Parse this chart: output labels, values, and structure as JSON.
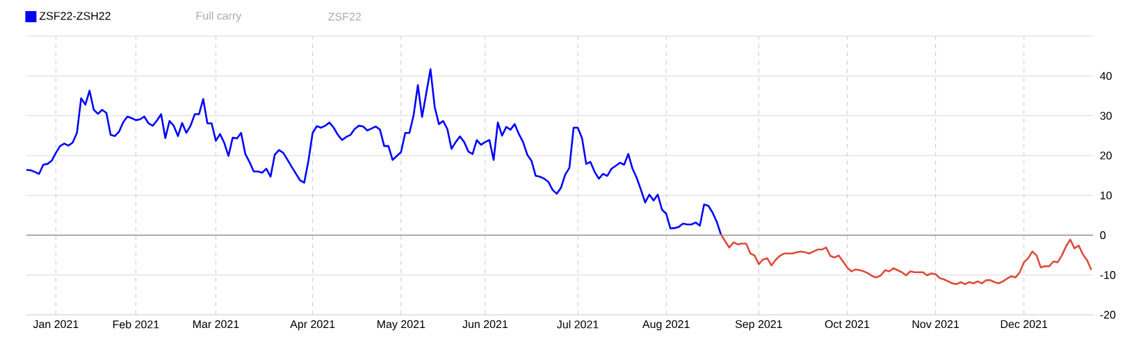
{
  "chart_data": {
    "type": "line",
    "marker": "none",
    "line_style": "solid",
    "grid": true,
    "legend": "top left",
    "ylim": [
      -20,
      50
    ],
    "yticks": [
      -20,
      -10,
      0,
      10,
      20,
      30,
      40,
      {
        "value": 50,
        "label": null
      }
    ],
    "ref_lines": [
      {
        "axis": "y",
        "value": 0,
        "color": "#808080"
      }
    ],
    "annotations": [
      "Full carry",
      "ZSF22"
    ],
    "categories": [
      null,
      null,
      null,
      null,
      null,
      null,
      null,
      "Jan 2021",
      null,
      null,
      null,
      null,
      null,
      null,
      null,
      null,
      null,
      null,
      null,
      null,
      null,
      null,
      null,
      null,
      null,
      null,
      "Feb 2021",
      null,
      null,
      null,
      null,
      null,
      null,
      null,
      null,
      null,
      null,
      null,
      null,
      null,
      null,
      null,
      null,
      null,
      null,
      "Mar 2021",
      null,
      null,
      null,
      null,
      null,
      null,
      null,
      null,
      null,
      null,
      null,
      null,
      null,
      null,
      null,
      null,
      null,
      null,
      null,
      null,
      null,
      null,
      "Apr 2021",
      null,
      null,
      null,
      null,
      null,
      null,
      null,
      null,
      null,
      null,
      null,
      null,
      null,
      null,
      null,
      null,
      null,
      null,
      null,
      null,
      "May 2021",
      null,
      null,
      null,
      null,
      null,
      null,
      null,
      null,
      null,
      null,
      null,
      null,
      null,
      null,
      null,
      null,
      null,
      null,
      null,
      "Jun 2021",
      null,
      null,
      null,
      null,
      null,
      null,
      null,
      null,
      null,
      null,
      null,
      null,
      null,
      null,
      null,
      null,
      null,
      null,
      null,
      null,
      null,
      "Jul 2021",
      null,
      null,
      null,
      null,
      null,
      null,
      null,
      null,
      null,
      null,
      null,
      null,
      null,
      null,
      null,
      null,
      null,
      null,
      null,
      null,
      "Aug 2021",
      null,
      null,
      null,
      null,
      null,
      null,
      null,
      null,
      null,
      null,
      null,
      null,
      null,
      null,
      null,
      null,
      null,
      null,
      null,
      null,
      null,
      "Sep 2021",
      null,
      null,
      null,
      null,
      null,
      null,
      null,
      null,
      null,
      null,
      null,
      null,
      null,
      null,
      null,
      null,
      null,
      null,
      null,
      null,
      "Oct 2021",
      null,
      null,
      null,
      null,
      null,
      null,
      null,
      null,
      null,
      null,
      null,
      null,
      null,
      null,
      null,
      null,
      null,
      null,
      null,
      null,
      "Nov 2021",
      null,
      null,
      null,
      null,
      null,
      null,
      null,
      null,
      null,
      null,
      null,
      null,
      null,
      null,
      null,
      null,
      null,
      null,
      null,
      null,
      "Dec 2021",
      null,
      null,
      null,
      null,
      null,
      null,
      null,
      null,
      null,
      null,
      null,
      null,
      null,
      null,
      null,
      null
    ],
    "series": [
      {
        "name": "ZSF22-ZSH22",
        "color": "#0000ff",
        "values": [
          16.4,
          16.3,
          15.9,
          15.4,
          17.7,
          17.9,
          18.7,
          20.7,
          22.4,
          23.0,
          22.5,
          23.3,
          25.7,
          34.4,
          32.8,
          36.3,
          31.5,
          30.5,
          31.5,
          30.7,
          25.2,
          24.9,
          26.0,
          28.4,
          29.8,
          29.4,
          28.9,
          29.1,
          29.8,
          28.1,
          27.5,
          28.8,
          30.4,
          24.4,
          28.7,
          27.5,
          24.9,
          28.2,
          25.7,
          27.5,
          30.4,
          30.4,
          34.2,
          28.1,
          28.1,
          23.7,
          25.4,
          23.2,
          19.9,
          24.5,
          24.3,
          25.7,
          20.4,
          18.4,
          16.0,
          16.0,
          15.7,
          16.7,
          14.7,
          20.2,
          21.4,
          20.7,
          19.0,
          17.2,
          15.5,
          13.8,
          13.2,
          18.7,
          25.7,
          27.4,
          27.0,
          27.5,
          28.3,
          27.0,
          25.2,
          23.9,
          24.7,
          25.2,
          26.7,
          27.5,
          27.3,
          26.3,
          26.8,
          27.3,
          26.5,
          22.4,
          22.4,
          18.9,
          19.9,
          20.9,
          25.7,
          25.7,
          30.2,
          37.7,
          29.7,
          35.7,
          41.7,
          32.2,
          27.9,
          28.7,
          26.7,
          21.7,
          23.4,
          24.8,
          23.4,
          21.0,
          20.4,
          23.9,
          22.7,
          23.4,
          23.9,
          18.9,
          28.3,
          25.0,
          27.2,
          26.5,
          27.9,
          25.4,
          23.4,
          20.2,
          18.7,
          14.9,
          14.7,
          14.2,
          13.4,
          11.4,
          10.4,
          11.9,
          15.2,
          16.9,
          27.0,
          27.0,
          24.4,
          17.9,
          18.4,
          15.9,
          14.2,
          15.4,
          14.9,
          16.7,
          17.4,
          18.2,
          17.7,
          20.4,
          16.7,
          14.4,
          11.4,
          8.2,
          10.2,
          8.7,
          10.2,
          6.4,
          5.4,
          1.7,
          1.8,
          2.1,
          2.9,
          2.7,
          2.7,
          3.2,
          2.4,
          7.7,
          7.4,
          5.7,
          3.4,
          0.2,
          null,
          null,
          null,
          null,
          null,
          null,
          null,
          null,
          null,
          null,
          null,
          null,
          null,
          null,
          null,
          null,
          null,
          null,
          null,
          null,
          null,
          null,
          null,
          null,
          null,
          null,
          null,
          null,
          null,
          null,
          null,
          null,
          null,
          null,
          null,
          null,
          null,
          null,
          null,
          null,
          null,
          null,
          null,
          null,
          null,
          null,
          null,
          null,
          null,
          null,
          null,
          null,
          null,
          null,
          null,
          null,
          null,
          null,
          null,
          null,
          null,
          null,
          null,
          null,
          null,
          null,
          null,
          null,
          null,
          null,
          null,
          null,
          null,
          null,
          null,
          null,
          null,
          null,
          null,
          null,
          null,
          null,
          null,
          null,
          null,
          null,
          null,
          null
        ]
      },
      {
        "color": "#dd4b39",
        "values": [
          null,
          null,
          null,
          null,
          null,
          null,
          null,
          null,
          null,
          null,
          null,
          null,
          null,
          null,
          null,
          null,
          null,
          null,
          null,
          null,
          null,
          null,
          null,
          null,
          null,
          null,
          null,
          null,
          null,
          null,
          null,
          null,
          null,
          null,
          null,
          null,
          null,
          null,
          null,
          null,
          null,
          null,
          null,
          null,
          null,
          null,
          null,
          null,
          null,
          null,
          null,
          null,
          null,
          null,
          null,
          null,
          null,
          null,
          null,
          null,
          null,
          null,
          null,
          null,
          null,
          null,
          null,
          null,
          null,
          null,
          null,
          null,
          null,
          null,
          null,
          null,
          null,
          null,
          null,
          null,
          null,
          null,
          null,
          null,
          null,
          null,
          null,
          null,
          null,
          null,
          null,
          null,
          null,
          null,
          null,
          null,
          null,
          null,
          null,
          null,
          null,
          null,
          null,
          null,
          null,
          null,
          null,
          null,
          null,
          null,
          null,
          null,
          null,
          null,
          null,
          null,
          null,
          null,
          null,
          null,
          null,
          null,
          null,
          null,
          null,
          null,
          null,
          null,
          null,
          null,
          null,
          null,
          null,
          null,
          null,
          null,
          null,
          null,
          null,
          null,
          null,
          null,
          null,
          null,
          null,
          null,
          null,
          null,
          null,
          null,
          null,
          null,
          null,
          null,
          null,
          null,
          null,
          null,
          null,
          null,
          null,
          null,
          null,
          null,
          null,
          0.2,
          -1.5,
          -3.1,
          -1.8,
          -2.3,
          -2.1,
          -2.1,
          -4.6,
          -5.1,
          -7.3,
          -6.1,
          -5.8,
          -7.6,
          -6.2,
          -5.2,
          -4.6,
          -4.6,
          -4.6,
          -4.3,
          -4.1,
          -4.3,
          -4.6,
          -4.1,
          -3.6,
          -3.6,
          -3.1,
          -5.2,
          -5.6,
          -5.1,
          -6.6,
          -8.1,
          -9.1,
          -8.6,
          -8.8,
          -9.1,
          -9.6,
          -10.3,
          -10.6,
          -10.1,
          -8.8,
          -9.1,
          -8.3,
          -8.8,
          -9.3,
          -10.1,
          -9.1,
          -9.3,
          -9.3,
          -9.3,
          -10.1,
          -9.6,
          -9.8,
          -10.8,
          -11.1,
          -11.6,
          -12.1,
          -12.3,
          -11.8,
          -12.3,
          -11.8,
          -12.1,
          -11.6,
          -12.1,
          -11.3,
          -11.3,
          -11.8,
          -12.1,
          -11.6,
          -10.9,
          -10.3,
          -10.6,
          -9.3,
          -6.8,
          -5.8,
          -4.1,
          -5.1,
          -8.1,
          -7.8,
          -7.8,
          -6.6,
          -6.8,
          -5.1,
          -2.8,
          -1.1,
          -3.3,
          -2.6,
          -4.8,
          -6.3,
          -8.7
        ]
      }
    ]
  }
}
